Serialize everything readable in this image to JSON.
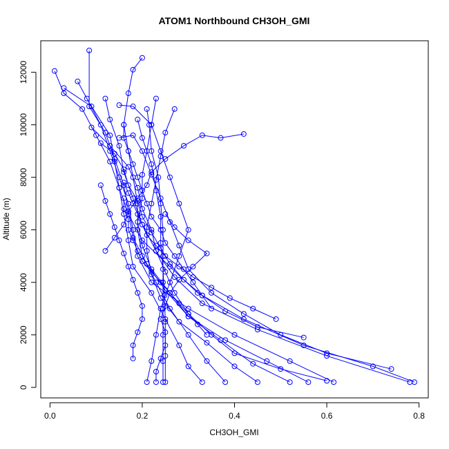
{
  "chart_data": {
    "type": "line",
    "title": "ATOM1 Northbound CH3OH_GMI",
    "xlabel": "CH3OH_GMI",
    "ylabel": "Altitude (m)",
    "xlim": [
      -0.02,
      0.82
    ],
    "ylim": [
      -400,
      13200
    ],
    "xticks": [
      0.0,
      0.2,
      0.4,
      0.6,
      0.8
    ],
    "xtick_labels": [
      "0.0",
      "0.2",
      "0.4",
      "0.6",
      "0.8"
    ],
    "yticks": [
      0,
      2000,
      4000,
      6000,
      8000,
      10000,
      12000
    ],
    "ytick_labels": [
      "0",
      "2000",
      "4000",
      "6000",
      "8000",
      "10000",
      "12000"
    ],
    "grid": false,
    "color": "#0000ff",
    "series": [
      {
        "points": [
          [
            0.245,
            200
          ],
          [
            0.245,
            1000
          ],
          [
            0.245,
            2000
          ],
          [
            0.245,
            3000
          ],
          [
            0.245,
            4000
          ],
          [
            0.245,
            5000
          ],
          [
            0.245,
            6000
          ],
          [
            0.24,
            7000
          ],
          [
            0.235,
            8000
          ],
          [
            0.22,
            9000
          ],
          [
            0.215,
            10000
          ],
          [
            0.21,
            10600
          ]
        ]
      },
      {
        "points": [
          [
            0.25,
            200
          ],
          [
            0.25,
            1200
          ],
          [
            0.25,
            2500
          ],
          [
            0.248,
            3500
          ],
          [
            0.245,
            4500
          ],
          [
            0.24,
            5500
          ],
          [
            0.24,
            6500
          ],
          [
            0.23,
            7500
          ],
          [
            0.22,
            8500
          ],
          [
            0.2,
            9500
          ],
          [
            0.19,
            10200
          ]
        ]
      },
      {
        "points": [
          [
            0.78,
            200
          ],
          [
            0.6,
            1200
          ],
          [
            0.45,
            2200
          ],
          [
            0.33,
            3200
          ],
          [
            0.27,
            4200
          ],
          [
            0.23,
            5200
          ],
          [
            0.2,
            6200
          ],
          [
            0.18,
            7200
          ],
          [
            0.16,
            8200
          ],
          [
            0.15,
            9200
          ],
          [
            0.13,
            10200
          ],
          [
            0.12,
            11000
          ]
        ]
      },
      {
        "points": [
          [
            0.79,
            200
          ],
          [
            0.7,
            800
          ],
          [
            0.55,
            1600
          ],
          [
            0.42,
            2600
          ],
          [
            0.32,
            3600
          ],
          [
            0.26,
            4600
          ],
          [
            0.2,
            5600
          ],
          [
            0.17,
            6600
          ],
          [
            0.15,
            7600
          ],
          [
            0.13,
            8600
          ],
          [
            0.1,
            9600
          ],
          [
            0.07,
            10600
          ],
          [
            0.03,
            11200
          ],
          [
            0.01,
            12050
          ]
        ]
      },
      {
        "points": [
          [
            0.615,
            200
          ],
          [
            0.52,
            1000
          ],
          [
            0.4,
            2000
          ],
          [
            0.3,
            3000
          ],
          [
            0.22,
            4000
          ],
          [
            0.19,
            5000
          ],
          [
            0.18,
            6000
          ],
          [
            0.17,
            7000
          ],
          [
            0.15,
            8000
          ],
          [
            0.13,
            9000
          ],
          [
            0.11,
            10000
          ],
          [
            0.08,
            11000
          ],
          [
            0.06,
            11650
          ]
        ]
      },
      {
        "points": [
          [
            0.56,
            200
          ],
          [
            0.47,
            1000
          ],
          [
            0.38,
            1800
          ],
          [
            0.3,
            2700
          ],
          [
            0.25,
            3700
          ],
          [
            0.21,
            4700
          ],
          [
            0.18,
            5700
          ],
          [
            0.17,
            6700
          ],
          [
            0.16,
            7700
          ],
          [
            0.14,
            8700
          ],
          [
            0.12,
            9700
          ],
          [
            0.085,
            10700
          ],
          [
            0.085,
            12830
          ]
        ]
      },
      {
        "points": [
          [
            0.38,
            200
          ],
          [
            0.34,
            1000
          ],
          [
            0.3,
            2000
          ],
          [
            0.26,
            3000
          ],
          [
            0.23,
            4000
          ],
          [
            0.2,
            5000
          ],
          [
            0.19,
            6000
          ],
          [
            0.19,
            7000
          ],
          [
            0.18,
            8000
          ],
          [
            0.17,
            9000
          ],
          [
            0.16,
            10000
          ],
          [
            0.17,
            11200
          ],
          [
            0.18,
            12100
          ],
          [
            0.2,
            12550
          ]
        ]
      },
      {
        "points": [
          [
            0.33,
            200
          ],
          [
            0.3,
            800
          ],
          [
            0.28,
            1600
          ],
          [
            0.25,
            2600
          ],
          [
            0.22,
            3600
          ],
          [
            0.18,
            4600
          ],
          [
            0.17,
            5600
          ],
          [
            0.16,
            6600
          ],
          [
            0.15,
            7600
          ],
          [
            0.14,
            8600
          ],
          [
            0.13,
            9600
          ],
          [
            0.09,
            10700
          ],
          [
            0.03,
            11400
          ]
        ]
      },
      {
        "points": [
          [
            0.52,
            200
          ],
          [
            0.44,
            900
          ],
          [
            0.37,
            1800
          ],
          [
            0.3,
            2700
          ],
          [
            0.26,
            3600
          ],
          [
            0.22,
            4500
          ],
          [
            0.2,
            5400
          ],
          [
            0.19,
            6300
          ],
          [
            0.2,
            7200
          ],
          [
            0.2,
            8100
          ],
          [
            0.21,
            9000
          ],
          [
            0.22,
            10000
          ],
          [
            0.23,
            11000
          ]
        ]
      },
      {
        "points": [
          [
            0.45,
            200
          ],
          [
            0.4,
            800
          ],
          [
            0.34,
            1700
          ],
          [
            0.28,
            2500
          ],
          [
            0.24,
            3400
          ],
          [
            0.22,
            4300
          ],
          [
            0.21,
            5200
          ],
          [
            0.21,
            6100
          ],
          [
            0.22,
            7000
          ],
          [
            0.23,
            7900
          ],
          [
            0.24,
            8800
          ],
          [
            0.25,
            9700
          ],
          [
            0.27,
            10600
          ]
        ]
      },
      {
        "points": [
          [
            0.21,
            200
          ],
          [
            0.22,
            1000
          ],
          [
            0.23,
            2000
          ],
          [
            0.24,
            3000
          ],
          [
            0.26,
            4000
          ],
          [
            0.28,
            5000
          ],
          [
            0.3,
            6000
          ],
          [
            0.28,
            7000
          ],
          [
            0.26,
            8000
          ],
          [
            0.24,
            9000
          ],
          [
            0.22,
            10000
          ],
          [
            0.18,
            10700
          ],
          [
            0.15,
            10750
          ]
        ]
      },
      {
        "points": [
          [
            0.6,
            250
          ],
          [
            0.5,
            700
          ],
          [
            0.4,
            1300
          ],
          [
            0.35,
            2000
          ],
          [
            0.3,
            2800
          ],
          [
            0.27,
            3600
          ],
          [
            0.25,
            4400
          ],
          [
            0.23,
            5200
          ],
          [
            0.22,
            6000
          ],
          [
            0.2,
            6800
          ],
          [
            0.19,
            7600
          ],
          [
            0.17,
            8400
          ],
          [
            0.13,
            9200
          ],
          [
            0.09,
            9900
          ]
        ]
      },
      {
        "points": [
          [
            0.74,
            700
          ],
          [
            0.6,
            1300
          ],
          [
            0.5,
            2000
          ],
          [
            0.42,
            2800
          ],
          [
            0.35,
            3600
          ],
          [
            0.3,
            4500
          ],
          [
            0.28,
            5400
          ],
          [
            0.26,
            6300
          ],
          [
            0.24,
            7200
          ],
          [
            0.22,
            8100
          ],
          [
            0.2,
            9000
          ],
          [
            0.18,
            9600
          ],
          [
            0.15,
            9500
          ]
        ]
      },
      {
        "points": [
          [
            0.55,
            1900
          ],
          [
            0.45,
            2300
          ],
          [
            0.38,
            2900
          ],
          [
            0.33,
            3500
          ],
          [
            0.29,
            4100
          ],
          [
            0.26,
            4700
          ],
          [
            0.24,
            5300
          ],
          [
            0.22,
            5900
          ],
          [
            0.2,
            6500
          ],
          [
            0.19,
            7100
          ],
          [
            0.17,
            7700
          ],
          [
            0.16,
            8300
          ],
          [
            0.14,
            8900
          ],
          [
            0.11,
            9300
          ]
        ]
      },
      {
        "points": [
          [
            0.23,
            200
          ],
          [
            0.23,
            600
          ],
          [
            0.24,
            1100
          ],
          [
            0.25,
            1600
          ],
          [
            0.25,
            2100
          ],
          [
            0.24,
            2600
          ],
          [
            0.25,
            3100
          ],
          [
            0.26,
            3600
          ],
          [
            0.28,
            4100
          ],
          [
            0.31,
            4600
          ],
          [
            0.34,
            5100
          ],
          [
            0.3,
            5600
          ],
          [
            0.27,
            6100
          ],
          [
            0.25,
            6600
          ]
        ]
      },
      {
        "points": [
          [
            0.18,
            1100
          ],
          [
            0.18,
            1600
          ],
          [
            0.19,
            2100
          ],
          [
            0.2,
            2600
          ],
          [
            0.2,
            3100
          ],
          [
            0.19,
            3600
          ],
          [
            0.18,
            4100
          ],
          [
            0.17,
            4600
          ],
          [
            0.16,
            5100
          ],
          [
            0.15,
            5600
          ],
          [
            0.14,
            6100
          ],
          [
            0.13,
            6600
          ],
          [
            0.12,
            7100
          ],
          [
            0.11,
            7700
          ]
        ]
      },
      {
        "points": [
          [
            0.12,
            5200
          ],
          [
            0.14,
            5700
          ],
          [
            0.16,
            6200
          ],
          [
            0.17,
            6700
          ],
          [
            0.19,
            7200
          ],
          [
            0.21,
            7700
          ],
          [
            0.22,
            8200
          ],
          [
            0.25,
            8700
          ],
          [
            0.29,
            9200
          ],
          [
            0.33,
            9600
          ],
          [
            0.37,
            9500
          ],
          [
            0.42,
            9650
          ]
        ]
      },
      {
        "points": [
          [
            0.35,
            3000
          ],
          [
            0.33,
            3500
          ],
          [
            0.31,
            4000
          ],
          [
            0.29,
            4500
          ],
          [
            0.27,
            5000
          ],
          [
            0.25,
            5500
          ],
          [
            0.24,
            6000
          ],
          [
            0.22,
            6500
          ],
          [
            0.21,
            7000
          ],
          [
            0.2,
            7500
          ],
          [
            0.19,
            8000
          ],
          [
            0.18,
            8500
          ],
          [
            0.17,
            9000
          ],
          [
            0.16,
            9500
          ],
          [
            0.16,
            10000
          ]
        ]
      },
      {
        "points": [
          [
            0.49,
            2600
          ],
          [
            0.44,
            3000
          ],
          [
            0.39,
            3400
          ],
          [
            0.35,
            3800
          ],
          [
            0.31,
            4200
          ],
          [
            0.28,
            4600
          ],
          [
            0.25,
            5000
          ],
          [
            0.23,
            5400
          ],
          [
            0.21,
            5800
          ],
          [
            0.2,
            6200
          ],
          [
            0.19,
            6600
          ],
          [
            0.18,
            7000
          ],
          [
            0.17,
            7400
          ],
          [
            0.16,
            7800
          ]
        ]
      },
      {
        "points": [
          [
            0.34,
            2000
          ],
          [
            0.32,
            2400
          ],
          [
            0.3,
            2800
          ],
          [
            0.28,
            3200
          ],
          [
            0.26,
            3600
          ],
          [
            0.24,
            4000
          ],
          [
            0.22,
            4400
          ],
          [
            0.2,
            4800
          ],
          [
            0.19,
            5200
          ],
          [
            0.18,
            5600
          ],
          [
            0.17,
            6000
          ],
          [
            0.17,
            6400
          ],
          [
            0.16,
            6800
          ],
          [
            0.16,
            7200
          ]
        ]
      }
    ]
  }
}
